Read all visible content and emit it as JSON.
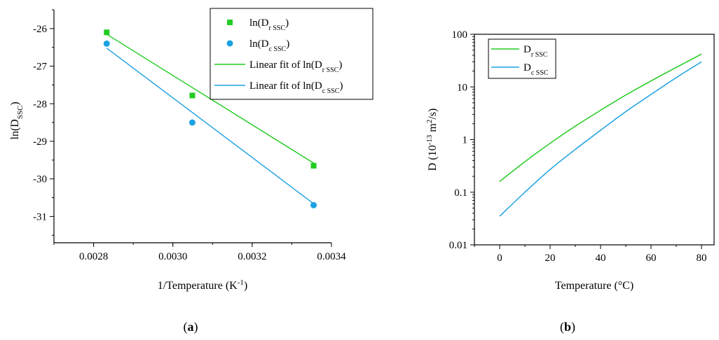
{
  "chart_data": [
    {
      "type": "scatter",
      "panel_label": "a",
      "xlabel": "1/Temperature (K",
      "xlabel_sup": "-1",
      "xlabel_tail": ")",
      "ylabel": "ln(D",
      "ylabel_sub": "SSC",
      "ylabel_tail": ")",
      "xlim": [
        0.0027,
        0.0034
      ],
      "ylim": [
        -31.7,
        -25.5
      ],
      "xticks": [
        0.0028,
        0.003,
        0.0032,
        0.0034
      ],
      "xtick_labels": [
        "0.0028",
        "0.0030",
        "0.0032",
        "0.0034"
      ],
      "yticks": [
        -26,
        -27,
        -28,
        -29,
        -30,
        -31
      ],
      "ytick_labels": [
        "-26",
        "-27",
        "-28",
        "-29",
        "-30",
        "-31"
      ],
      "legend_position": "top-right",
      "series": [
        {
          "name": "ln(D",
          "name_sub": "r SSC",
          "name_tail": ")",
          "kind": "scatter",
          "marker": "square",
          "color": "#22cc22",
          "x": [
            0.002833,
            0.003049,
            0.003355
          ],
          "y": [
            -26.1,
            -27.78,
            -29.65
          ]
        },
        {
          "name": "ln(D",
          "name_sub": "c SSC",
          "name_tail": ")",
          "kind": "scatter",
          "marker": "circle",
          "color": "#1ba1e2",
          "x": [
            0.002833,
            0.003049,
            0.003355
          ],
          "y": [
            -26.4,
            -28.5,
            -30.7
          ]
        },
        {
          "name": "Linear fit of ln(D",
          "name_sub": "r SSC",
          "name_tail": ")",
          "kind": "line",
          "color": "#22cc22",
          "x": [
            0.002833,
            0.003355
          ],
          "y": [
            -26.15,
            -29.58
          ]
        },
        {
          "name": "Linear fit of ln(D",
          "name_sub": "c SSC",
          "name_tail": ")",
          "kind": "line",
          "color": "#1ba1e2",
          "x": [
            0.002833,
            0.003355
          ],
          "y": [
            -26.52,
            -30.66
          ]
        }
      ]
    },
    {
      "type": "line",
      "panel_label": "b",
      "xlabel": "Temperature (°C)",
      "ylabel": "D (10",
      "ylabel_sup": "-13",
      "ylabel_mid": " m",
      "ylabel_sup2": "2",
      "ylabel_tail": "/s)",
      "xlim": [
        -10,
        85
      ],
      "ylim": [
        0.01,
        100
      ],
      "yscale": "log",
      "xticks": [
        0,
        20,
        40,
        60,
        80
      ],
      "xtick_labels": [
        "0",
        "20",
        "40",
        "60",
        "80"
      ],
      "yticks": [
        0.01,
        0.1,
        1,
        10,
        100
      ],
      "ytick_labels": [
        "0.01",
        "0.1",
        "1",
        "10",
        "100"
      ],
      "legend_position": "top-left",
      "series": [
        {
          "name": "D",
          "name_sub": "r SSC",
          "color": "#22cc22",
          "x": [
            0,
            10,
            20,
            30,
            40,
            50,
            60,
            70,
            80
          ],
          "y": [
            0.16,
            0.38,
            0.85,
            1.8,
            3.6,
            7.0,
            13.0,
            23.5,
            42.0
          ]
        },
        {
          "name": "D",
          "name_sub": "c SSC",
          "color": "#1ba1e2",
          "x": [
            0,
            10,
            20,
            30,
            40,
            50,
            60,
            70,
            80
          ],
          "y": [
            0.035,
            0.1,
            0.27,
            0.65,
            1.5,
            3.4,
            7.2,
            15.0,
            30.0
          ]
        }
      ]
    }
  ]
}
